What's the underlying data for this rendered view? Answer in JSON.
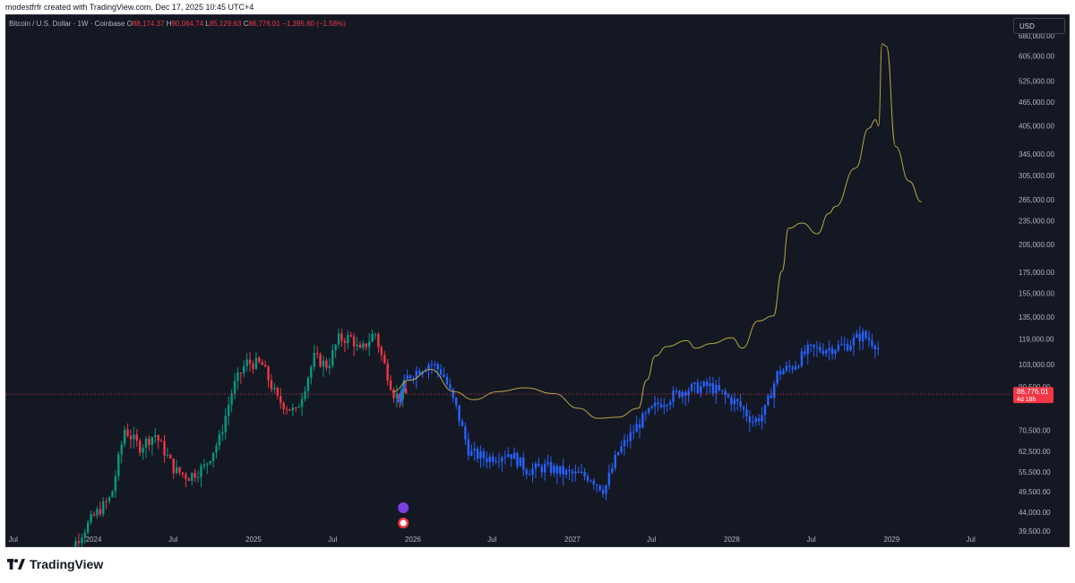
{
  "header": {
    "attribution": "modestfrfr created with TradingView.com, Dec 17, 2025 10:45 UTC+4"
  },
  "legend": {
    "symbol": "Bitcoin / U.S. Dollar · 1W · Coinbase",
    "open_label": "O",
    "open": "88,174.37",
    "high_label": "H",
    "high": "90,064.74",
    "low_label": "L",
    "low": "85,129.63",
    "close_label": "C",
    "close": "86,776.01",
    "change": "−1,395.60 (−1.58%)"
  },
  "currency_button": "USD",
  "footer": {
    "brand": "TradingView"
  },
  "colors": {
    "background": "#141823",
    "up": "#089981",
    "down": "#f23645",
    "projection": "#2962ff",
    "overlay_line": "#b5a642",
    "price_line": "#f23645"
  },
  "chart_data": {
    "type": "candlestick",
    "scale": "log",
    "symbol": "BTCUSD",
    "interval": "1W",
    "last_price": 86776.01,
    "last_price_label": "86,776.01",
    "countdown_label": "4d 18h",
    "y_ticks": [
      {
        "value": 680000,
        "label": "680,000.00"
      },
      {
        "value": 605000,
        "label": "605,000.00"
      },
      {
        "value": 525000,
        "label": "525,000.00"
      },
      {
        "value": 465000,
        "label": "465,000.00"
      },
      {
        "value": 405000,
        "label": "405,000.00"
      },
      {
        "value": 345000,
        "label": "345,000.00"
      },
      {
        "value": 305000,
        "label": "305,000.00"
      },
      {
        "value": 265000,
        "label": "265,000.00"
      },
      {
        "value": 235000,
        "label": "235,000.00"
      },
      {
        "value": 205000,
        "label": "205,000.00"
      },
      {
        "value": 175000,
        "label": "175,000.00"
      },
      {
        "value": 155000,
        "label": "155,000.00"
      },
      {
        "value": 135000,
        "label": "135,000.00"
      },
      {
        "value": 119000,
        "label": "119,000.00"
      },
      {
        "value": 103000,
        "label": "103,000.00"
      },
      {
        "value": 90500,
        "label": "90,500.00"
      },
      {
        "value": 70500,
        "label": "70,500.00"
      },
      {
        "value": 62500,
        "label": "62,500.00"
      },
      {
        "value": 55500,
        "label": "55,500.00"
      },
      {
        "value": 49500,
        "label": "49,500.00"
      },
      {
        "value": 44000,
        "label": "44,000.00"
      },
      {
        "value": 39500,
        "label": "39,500.00"
      }
    ],
    "x_ticks": [
      {
        "date": "2023-07-01",
        "label": "Jul"
      },
      {
        "date": "2024-01-01",
        "label": "2024"
      },
      {
        "date": "2024-07-01",
        "label": "Jul"
      },
      {
        "date": "2025-01-01",
        "label": "2025"
      },
      {
        "date": "2025-07-01",
        "label": "Jul"
      },
      {
        "date": "2026-01-01",
        "label": "2026"
      },
      {
        "date": "2026-07-01",
        "label": "Jul"
      },
      {
        "date": "2027-01-01",
        "label": "2027"
      },
      {
        "date": "2027-07-01",
        "label": "Jul"
      },
      {
        "date": "2028-01-01",
        "label": "2028"
      },
      {
        "date": "2028-07-01",
        "label": "Jul"
      },
      {
        "date": "2029-01-01",
        "label": "2029"
      },
      {
        "date": "2029-07-01",
        "label": "Jul"
      }
    ],
    "x_range": [
      "2023-06-15",
      "2029-09-30"
    ],
    "actual_anchors": [
      [
        "2023-10-10",
        27500
      ],
      [
        "2023-11-20",
        37000
      ],
      [
        "2024-01-01",
        43000
      ],
      [
        "2024-02-10",
        48000
      ],
      [
        "2024-03-12",
        71000
      ],
      [
        "2024-04-15",
        64000
      ],
      [
        "2024-05-20",
        69000
      ],
      [
        "2024-07-05",
        56000
      ],
      [
        "2024-08-05",
        54000
      ],
      [
        "2024-09-10",
        57000
      ],
      [
        "2024-10-15",
        67000
      ],
      [
        "2024-11-15",
        90000
      ],
      [
        "2024-12-15",
        104000
      ],
      [
        "2025-01-20",
        103000
      ],
      [
        "2025-02-25",
        84000
      ],
      [
        "2025-04-08",
        78000
      ],
      [
        "2025-05-20",
        107000
      ],
      [
        "2025-06-20",
        102000
      ],
      [
        "2025-07-14",
        119000
      ],
      [
        "2025-08-14",
        120000
      ],
      [
        "2025-09-01",
        110000
      ],
      [
        "2025-10-06",
        124000
      ],
      [
        "2025-10-20",
        109000
      ],
      [
        "2025-11-20",
        86000
      ],
      [
        "2025-12-17",
        86776
      ]
    ],
    "projection_anchors": [
      [
        "2025-11-28",
        84000
      ],
      [
        "2025-12-20",
        96000
      ],
      [
        "2026-02-10",
        104000
      ],
      [
        "2026-03-10",
        98000
      ],
      [
        "2026-04-10",
        80000
      ],
      [
        "2026-05-10",
        62000
      ],
      [
        "2026-06-20",
        60000
      ],
      [
        "2026-08-10",
        62000
      ],
      [
        "2026-09-20",
        56000
      ],
      [
        "2026-11-01",
        57000
      ],
      [
        "2026-12-20",
        55000
      ],
      [
        "2027-02-10",
        54000
      ],
      [
        "2027-03-15",
        50000
      ],
      [
        "2027-04-15",
        62000
      ],
      [
        "2027-06-01",
        73000
      ],
      [
        "2027-07-15",
        82000
      ],
      [
        "2027-09-15",
        89000
      ],
      [
        "2027-11-10",
        91000
      ],
      [
        "2028-01-15",
        82000
      ],
      [
        "2028-02-20",
        74000
      ],
      [
        "2028-03-15",
        78000
      ],
      [
        "2028-04-15",
        98000
      ],
      [
        "2028-05-20",
        102000
      ],
      [
        "2028-06-25",
        112000
      ],
      [
        "2028-08-15",
        113000
      ],
      [
        "2028-09-20",
        115000
      ],
      [
        "2028-10-25",
        122000
      ],
      [
        "2028-11-30",
        115000
      ],
      [
        "2028-12-07",
        103000
      ]
    ],
    "overlay_line": [
      [
        "2025-11-15",
        88000
      ],
      [
        "2025-12-25",
        94000
      ],
      [
        "2026-02-10",
        100000
      ],
      [
        "2026-04-05",
        88000
      ],
      [
        "2026-05-20",
        84000
      ],
      [
        "2026-07-15",
        88000
      ],
      [
        "2026-09-15",
        90000
      ],
      [
        "2026-11-20",
        87000
      ],
      [
        "2027-01-15",
        80000
      ],
      [
        "2027-03-01",
        75500
      ],
      [
        "2027-04-15",
        76000
      ],
      [
        "2027-06-01",
        80000
      ],
      [
        "2027-06-20",
        94000
      ],
      [
        "2027-07-10",
        108000
      ],
      [
        "2027-08-05",
        114000
      ],
      [
        "2027-09-20",
        118000
      ],
      [
        "2027-10-10",
        113000
      ],
      [
        "2027-11-15",
        116000
      ],
      [
        "2028-01-01",
        120000
      ],
      [
        "2028-01-25",
        113000
      ],
      [
        "2028-03-01",
        132000
      ],
      [
        "2028-04-05",
        136000
      ],
      [
        "2028-04-25",
        176000
      ],
      [
        "2028-05-10",
        225000
      ],
      [
        "2028-06-10",
        232000
      ],
      [
        "2028-07-15",
        218000
      ],
      [
        "2028-08-10",
        245000
      ],
      [
        "2028-08-25",
        255000
      ],
      [
        "2028-10-10",
        318000
      ],
      [
        "2028-11-10",
        400000
      ],
      [
        "2028-11-25",
        420000
      ],
      [
        "2028-12-02",
        405000
      ],
      [
        "2028-12-10",
        650000
      ],
      [
        "2028-12-20",
        640000
      ],
      [
        "2029-01-10",
        360000
      ],
      [
        "2029-02-10",
        295000
      ],
      [
        "2029-03-10",
        262000
      ]
    ]
  }
}
